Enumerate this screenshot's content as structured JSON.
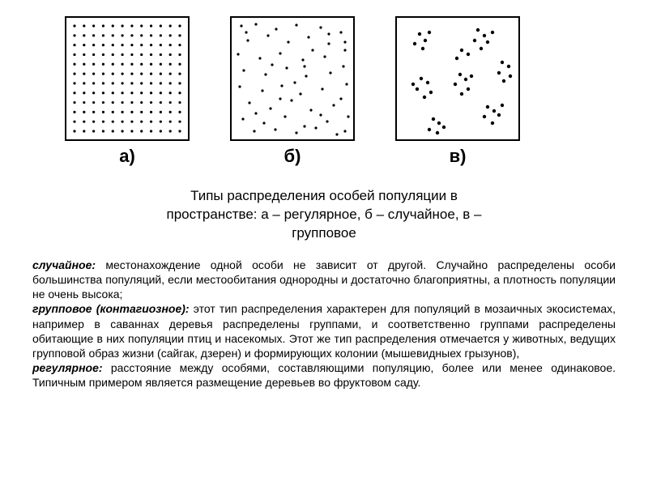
{
  "panel_size": 150,
  "dot_color": "#000000",
  "border_color": "#000000",
  "background": "#ffffff",
  "panels": {
    "a": {
      "label": "а)",
      "type": "regular",
      "grid_cols": 12,
      "grid_rows": 12,
      "dot_radius": 1.6
    },
    "b": {
      "label": "б)",
      "type": "random",
      "dot_radius": 1.6,
      "points": [
        [
          12,
          10
        ],
        [
          30,
          8
        ],
        [
          55,
          14
        ],
        [
          80,
          9
        ],
        [
          110,
          12
        ],
        [
          135,
          18
        ],
        [
          20,
          28
        ],
        [
          45,
          22
        ],
        [
          70,
          30
        ],
        [
          95,
          24
        ],
        [
          120,
          32
        ],
        [
          140,
          40
        ],
        [
          8,
          45
        ],
        [
          35,
          50
        ],
        [
          60,
          44
        ],
        [
          88,
          52
        ],
        [
          115,
          48
        ],
        [
          138,
          60
        ],
        [
          15,
          65
        ],
        [
          42,
          70
        ],
        [
          68,
          62
        ],
        [
          92,
          72
        ],
        [
          122,
          68
        ],
        [
          142,
          82
        ],
        [
          10,
          85
        ],
        [
          38,
          90
        ],
        [
          62,
          84
        ],
        [
          85,
          94
        ],
        [
          112,
          88
        ],
        [
          135,
          100
        ],
        [
          22,
          105
        ],
        [
          48,
          112
        ],
        [
          74,
          102
        ],
        [
          98,
          114
        ],
        [
          126,
          108
        ],
        [
          144,
          122
        ],
        [
          14,
          125
        ],
        [
          40,
          130
        ],
        [
          66,
          122
        ],
        [
          90,
          134
        ],
        [
          118,
          128
        ],
        [
          140,
          140
        ],
        [
          28,
          140
        ],
        [
          54,
          138
        ],
        [
          80,
          142
        ],
        [
          104,
          136
        ],
        [
          130,
          144
        ],
        [
          18,
          18
        ],
        [
          100,
          40
        ],
        [
          50,
          58
        ],
        [
          78,
          80
        ],
        [
          110,
          120
        ],
        [
          60,
          100
        ],
        [
          30,
          118
        ],
        [
          90,
          60
        ],
        [
          120,
          20
        ],
        [
          140,
          30
        ]
      ]
    },
    "c": {
      "label": "в)",
      "type": "clustered",
      "dot_radius": 2.2,
      "points": [
        [
          28,
          20
        ],
        [
          35,
          28
        ],
        [
          22,
          32
        ],
        [
          40,
          18
        ],
        [
          32,
          38
        ],
        [
          100,
          15
        ],
        [
          108,
          22
        ],
        [
          96,
          28
        ],
        [
          112,
          30
        ],
        [
          104,
          38
        ],
        [
          118,
          18
        ],
        [
          130,
          55
        ],
        [
          138,
          60
        ],
        [
          126,
          68
        ],
        [
          140,
          72
        ],
        [
          132,
          78
        ],
        [
          30,
          75
        ],
        [
          38,
          80
        ],
        [
          25,
          88
        ],
        [
          42,
          92
        ],
        [
          34,
          98
        ],
        [
          20,
          82
        ],
        [
          78,
          70
        ],
        [
          85,
          76
        ],
        [
          72,
          82
        ],
        [
          88,
          88
        ],
        [
          80,
          94
        ],
        [
          92,
          72
        ],
        [
          112,
          110
        ],
        [
          120,
          115
        ],
        [
          108,
          122
        ],
        [
          126,
          120
        ],
        [
          118,
          130
        ],
        [
          130,
          108
        ],
        [
          45,
          125
        ],
        [
          52,
          130
        ],
        [
          40,
          138
        ],
        [
          58,
          135
        ],
        [
          50,
          142
        ],
        [
          80,
          40
        ],
        [
          88,
          45
        ],
        [
          74,
          50
        ]
      ]
    }
  },
  "caption_lines": [
    "Типы распределения особей популяции в",
    "пространстве: а – регулярное, б – случайное, в –",
    "групповое"
  ],
  "body": {
    "term1": "случайное:",
    "text1": " местонахождение одной особи не зависит от другой. Случайно распределены особи большинства популяций, если местообитания однородны и достаточно благоприятны, а плотность популяции не очень высока;",
    "term2": "групповое (контагиозное):",
    "text2": " этот тип распределения характерен для популяций в мозаичных экосистемах, например в саваннах деревья распределены группами, и соответственно группами распределены обитающие в них популяции птиц и насекомых. Этот же тип распределения отмечается у животных, ведущих групповой образ жизни (сайгак, дзерен) и формирующих колонии (мышевидныех грызунов),",
    "term3": "регулярное:",
    "text3": " расстояние между особями, составляющими популяцию, более или менее одинаковое. Типичным примером является размещение деревьев во фруктовом саду."
  }
}
